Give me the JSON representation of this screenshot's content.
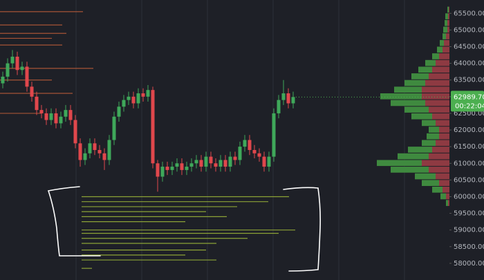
{
  "chart_data": {
    "type": "candlestick",
    "up_color": "#3fa85a",
    "down_color": "#e0474c",
    "open": [
      63400,
      63600,
      64000,
      64200,
      63800,
      63900,
      63300,
      63000,
      62600,
      62500,
      62300,
      62500,
      62200,
      62400,
      62600,
      62300,
      61600,
      61100,
      61300,
      61600,
      61400,
      61300,
      61100,
      61700,
      62400,
      62700,
      62900,
      63000,
      62800,
      63100,
      63000,
      63200,
      61000,
      60600,
      60900,
      60800,
      60900,
      61000,
      60800,
      60900,
      61000,
      61100,
      60900,
      61200,
      61000,
      60900,
      61100,
      60900,
      61200,
      61100,
      61500,
      61700,
      61400,
      61300,
      61200,
      60900,
      61200,
      62500,
      62900,
      63100,
      62800
    ],
    "high": [
      63750,
      64150,
      64400,
      64350,
      64050,
      64050,
      63450,
      63150,
      62750,
      62650,
      62650,
      62650,
      62550,
      62750,
      62750,
      62450,
      61750,
      61450,
      61750,
      61750,
      61550,
      61450,
      61850,
      62550,
      62850,
      63050,
      63150,
      63150,
      63250,
      63250,
      63350,
      63300,
      61100,
      61050,
      61050,
      61050,
      61150,
      61150,
      61050,
      61150,
      61250,
      61250,
      61350,
      61350,
      61150,
      61250,
      61250,
      61350,
      61350,
      61650,
      61850,
      61850,
      61550,
      61450,
      61350,
      61350,
      62650,
      63050,
      63500,
      63250,
      63150
    ],
    "low": [
      63250,
      63450,
      63850,
      63650,
      63650,
      63150,
      62850,
      62450,
      62350,
      62150,
      62150,
      62050,
      62050,
      62250,
      62150,
      61450,
      60900,
      60950,
      61150,
      61250,
      61150,
      60800,
      60950,
      61550,
      62250,
      62550,
      62750,
      62650,
      62650,
      62850,
      62850,
      60850,
      60150,
      60450,
      60650,
      60650,
      60750,
      60650,
      60650,
      60750,
      60850,
      60750,
      60750,
      60850,
      60750,
      60750,
      60750,
      60750,
      60950,
      60950,
      61350,
      61250,
      61150,
      61050,
      60750,
      60750,
      61050,
      62350,
      62750,
      62650,
      62650
    ],
    "close": [
      63600,
      64000,
      64200,
      63800,
      63900,
      63300,
      63000,
      62600,
      62500,
      62300,
      62500,
      62200,
      62400,
      62600,
      62300,
      61600,
      61100,
      61300,
      61600,
      61400,
      61300,
      61100,
      61700,
      62400,
      62700,
      62900,
      63000,
      62800,
      63100,
      63000,
      63200,
      61000,
      60600,
      60900,
      60800,
      60900,
      61000,
      60800,
      60900,
      61000,
      61100,
      60900,
      61200,
      61000,
      60900,
      61100,
      60900,
      61200,
      61100,
      61500,
      61700,
      61400,
      61300,
      61200,
      60900,
      61200,
      62500,
      62900,
      63100,
      62800,
      62990
    ],
    "ylim": [
      57500,
      65900
    ],
    "yticks": [
      {
        "value": 58000,
        "label": "58000.00"
      },
      {
        "value": 58500,
        "label": "58500.00"
      },
      {
        "value": 59000,
        "label": "59000.00"
      },
      {
        "value": 59500,
        "label": "59500.00"
      },
      {
        "value": 60000,
        "label": "60000.00"
      },
      {
        "value": 60500,
        "label": "60500.00"
      },
      {
        "value": 61000,
        "label": "61000.00"
      },
      {
        "value": 61500,
        "label": "61500.00"
      },
      {
        "value": 62000,
        "label": "62000.00"
      },
      {
        "value": 62500,
        "label": "62500.00"
      },
      {
        "value": 63000,
        "label": "63000.00"
      },
      {
        "value": 63500,
        "label": "63500.00"
      },
      {
        "value": 64000,
        "label": "64000.00"
      },
      {
        "value": 64500,
        "label": "64500.00"
      },
      {
        "value": 65000,
        "label": "65000.00"
      },
      {
        "value": 65500,
        "label": "65500.00"
      }
    ],
    "last_price": {
      "value": 62989.7,
      "label": "62989.70"
    },
    "timer": "00:22:04",
    "volume_profile": {
      "prices": [
        59800,
        60000,
        60200,
        60400,
        60600,
        60800,
        61000,
        61200,
        61400,
        61600,
        61800,
        62000,
        62200,
        62400,
        62600,
        62800,
        63000,
        63200,
        63400,
        63600,
        63800,
        64000,
        64200,
        64400,
        64600,
        64800,
        65000,
        65200,
        65400,
        65600
      ],
      "sell": [
        2,
        5,
        10,
        15,
        20,
        30,
        40,
        30,
        25,
        20,
        15,
        15,
        20,
        25,
        30,
        35,
        40,
        40,
        35,
        30,
        25,
        20,
        15,
        10,
        8,
        5,
        3,
        3,
        2,
        1
      ],
      "buy": [
        3,
        8,
        15,
        25,
        30,
        55,
        65,
        45,
        35,
        20,
        18,
        15,
        20,
        30,
        35,
        50,
        60,
        40,
        30,
        25,
        20,
        15,
        10,
        8,
        6,
        5,
        6,
        4,
        4,
        2
      ],
      "sell_color": "#8e3a42",
      "buy_color": "#3f8a3f"
    },
    "bid_levels": {
      "color": "#a8c43a",
      "prices": [
        60000,
        59850,
        59700,
        59550,
        59400,
        59250,
        59000,
        58900,
        58750,
        58600,
        58400,
        58250,
        58100,
        57850
      ],
      "sizes": [
        100,
        90,
        75,
        60,
        70,
        50,
        103,
        95,
        80,
        65,
        60,
        50,
        65,
        5
      ]
    },
    "ask_levels": {
      "color": "#c9603a",
      "prices": [
        65550,
        65150,
        64900,
        64750,
        64550,
        63850,
        63500,
        63100,
        62500
      ],
      "sizes": [
        40,
        30,
        32,
        25,
        30,
        45,
        25,
        35,
        20
      ]
    }
  }
}
